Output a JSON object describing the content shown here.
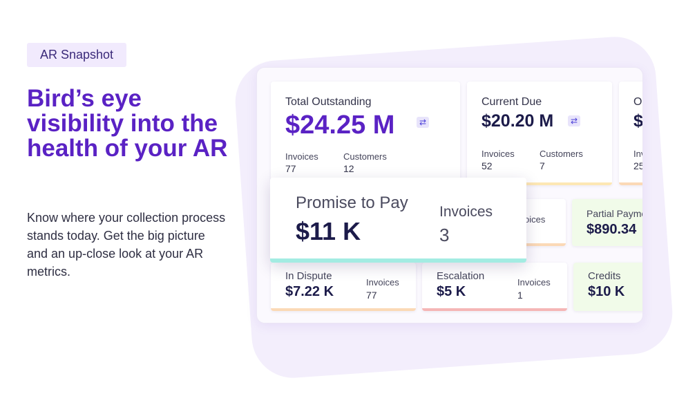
{
  "intro": {
    "tag": "AR Snapshot",
    "headline": "Bird’s eye visibility into the health of your AR",
    "description": "Know where your collection process stands today. Get the big picture and an up-close look at your AR metrics."
  },
  "cards": {
    "total_outstanding": {
      "title": "Total Outstanding",
      "value": "$24.25 M",
      "invoices_label": "Invoices",
      "invoices": "77",
      "customers_label": "Customers",
      "customers": "12"
    },
    "current_due": {
      "title": "Current Due",
      "value": "$20.20 M",
      "invoices_label": "Invoices",
      "invoices": "52",
      "customers_label": "Customers",
      "customers": "7"
    },
    "overdue_partial": {
      "title": "O",
      "value": "$",
      "invoices": "25",
      "invoices_label": "Inv"
    },
    "promise_to_pay": {
      "title": "Promise to Pay",
      "value": "$11 K",
      "invoices_label": "Invoices",
      "invoices": "3"
    },
    "hidden_invoices": {
      "label": "oices"
    },
    "partial_payment": {
      "title": "Partial Payme",
      "value": "$890.34"
    },
    "in_dispute": {
      "title": "In Dispute",
      "value": "$7.22 K",
      "invoices_label": "Invoices",
      "invoices": "77"
    },
    "escalation": {
      "title": "Escalation",
      "value": "$5 K",
      "invoices_label": "Invoices",
      "invoices": "1"
    },
    "credits": {
      "title": "Credits",
      "value": "$10 K"
    }
  },
  "icons": {
    "swap": "swap-arrows-icon"
  },
  "colors": {
    "brand_purple": "#5a22c4",
    "promise_accent": "#a3ece2",
    "dispute_accent": "#fbd9b6",
    "escalation_accent": "#f5b6b6",
    "current_due_accent": "#fde7b4",
    "partial_bg": "#f1fbe9"
  }
}
